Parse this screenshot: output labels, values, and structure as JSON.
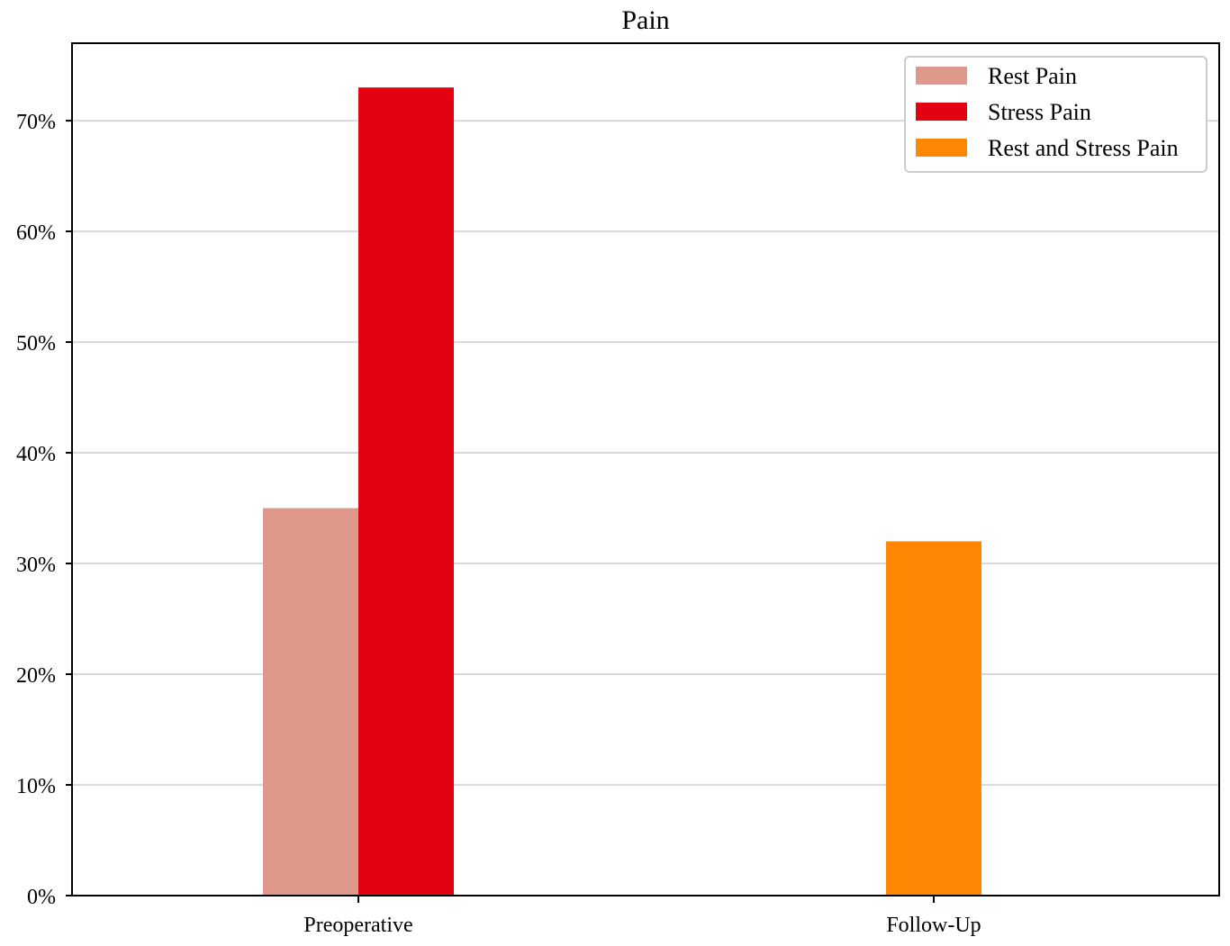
{
  "chart_data": {
    "type": "bar",
    "title": "Pain",
    "xlabel": "",
    "ylabel": "",
    "categories": [
      "Preoperative",
      "Follow-Up"
    ],
    "series": [
      {
        "name": "Rest Pain",
        "color": "#df998a",
        "values": [
          35,
          null
        ]
      },
      {
        "name": "Stress Pain",
        "color": "#e30211",
        "values": [
          73,
          null
        ]
      },
      {
        "name": "Rest and Stress Pain",
        "color": "#ff8703",
        "values": [
          null,
          32
        ]
      }
    ],
    "ylim": [
      0,
      77
    ],
    "yticks": [
      0,
      10,
      20,
      30,
      40,
      50,
      60,
      70
    ],
    "ytick_labels": [
      "0%",
      "10%",
      "20%",
      "30%",
      "40%",
      "50%",
      "60%",
      "70%"
    ],
    "grid": "horizontal",
    "legend_position": "top-right"
  }
}
